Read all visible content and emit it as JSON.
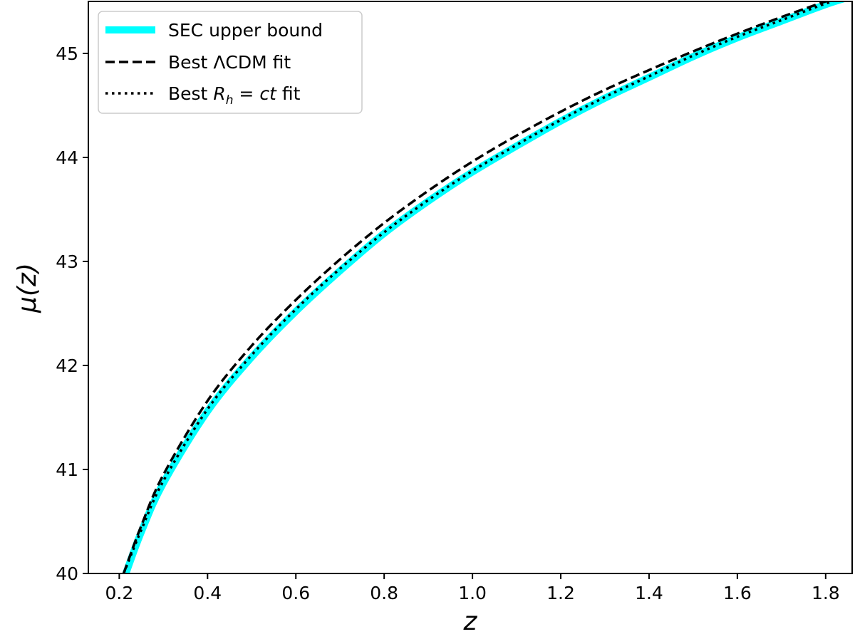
{
  "chart_data": {
    "type": "line",
    "xlabel": "z",
    "ylabel": "μ(z)",
    "xlim": [
      0.13,
      1.86
    ],
    "ylim": [
      40,
      45.5
    ],
    "xticks": [
      "0.2",
      "0.4",
      "0.6",
      "0.8",
      "1.0",
      "1.2",
      "1.4",
      "1.6",
      "1.8"
    ],
    "yticks": [
      "40",
      "41",
      "42",
      "43",
      "44",
      "45"
    ],
    "grid": false,
    "legend_position": "top-left",
    "series": [
      {
        "name": "SEC upper bound",
        "style": "solid-thick",
        "color": "#00ffff",
        "x": [
          0.215,
          0.25,
          0.3,
          0.4,
          0.5,
          0.6,
          0.7,
          0.8,
          0.9,
          1.0,
          1.1,
          1.2,
          1.3,
          1.4,
          1.5,
          1.6,
          1.7,
          1.8,
          1.86
        ],
        "y": [
          40.0,
          40.4,
          40.87,
          41.56,
          42.08,
          42.52,
          42.91,
          43.27,
          43.58,
          43.86,
          44.11,
          44.35,
          44.57,
          44.77,
          44.97,
          45.15,
          45.31,
          45.47,
          45.55
        ]
      },
      {
        "name": "Best ΛCDM fit",
        "style": "dashed",
        "color": "#000000",
        "x": [
          0.21,
          0.25,
          0.3,
          0.4,
          0.5,
          0.6,
          0.7,
          0.8,
          0.9,
          1.0,
          1.1,
          1.2,
          1.3,
          1.4,
          1.5,
          1.6,
          1.7,
          1.8,
          1.86
        ],
        "y": [
          40.0,
          40.46,
          40.95,
          41.66,
          42.19,
          42.63,
          43.02,
          43.37,
          43.68,
          43.96,
          44.21,
          44.44,
          44.65,
          44.84,
          45.02,
          45.19,
          45.35,
          45.5,
          45.58
        ]
      },
      {
        "name": "Best R_h = ct fit",
        "style": "dotted",
        "color": "#000000",
        "x": [
          0.21,
          0.25,
          0.3,
          0.4,
          0.5,
          0.6,
          0.7,
          0.8,
          0.9,
          1.0,
          1.1,
          1.2,
          1.3,
          1.4,
          1.5,
          1.6,
          1.7,
          1.8,
          1.86
        ],
        "y": [
          40.0,
          40.42,
          40.89,
          41.58,
          42.1,
          42.54,
          42.93,
          43.28,
          43.59,
          43.87,
          44.12,
          44.36,
          44.58,
          44.78,
          44.98,
          45.16,
          45.32,
          45.48,
          45.56
        ]
      }
    ],
    "legend_labels": {
      "sec": "SEC upper bound",
      "lcdm_prefix": "Best ",
      "lcdm_symbol": "Λ",
      "lcdm_rest": "CDM fit",
      "rh_prefix": "Best ",
      "rh_R": "R",
      "rh_sub": "h",
      "rh_eq": " = ",
      "rh_ct": "ct",
      "rh_suffix": " fit"
    }
  }
}
